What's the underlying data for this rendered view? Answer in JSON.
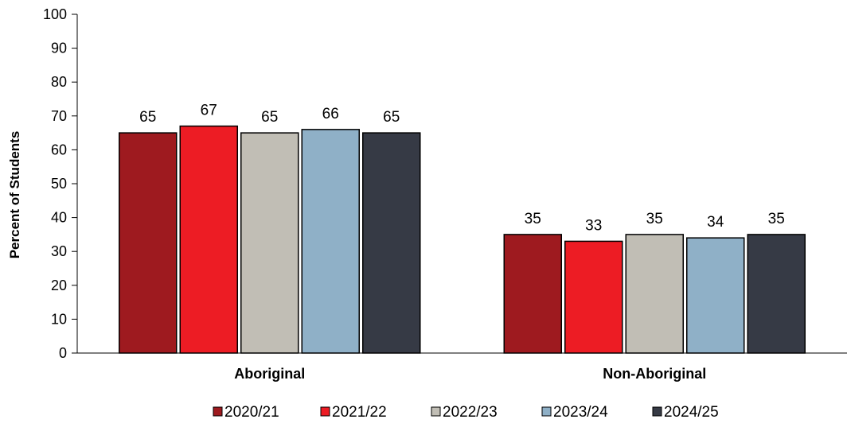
{
  "chart_data": {
    "type": "bar",
    "ylabel": "Percent of Students",
    "ylim": [
      0,
      100
    ],
    "yticks": [
      0,
      10,
      20,
      30,
      40,
      50,
      60,
      70,
      80,
      90,
      100
    ],
    "grid": false,
    "legend_position": "bottom",
    "categories": [
      "Aboriginal",
      "Non-Aboriginal"
    ],
    "series": [
      {
        "name": "2020/21",
        "color": "#9e1a1f",
        "values": [
          65,
          35
        ]
      },
      {
        "name": "2021/22",
        "color": "#ed1c24",
        "values": [
          67,
          33
        ]
      },
      {
        "name": "2022/23",
        "color": "#c1beb5",
        "values": [
          65,
          35
        ]
      },
      {
        "name": "2023/24",
        "color": "#8fb0c7",
        "values": [
          66,
          34
        ]
      },
      {
        "name": "2024/25",
        "color": "#363a45",
        "values": [
          65,
          35
        ]
      }
    ]
  }
}
